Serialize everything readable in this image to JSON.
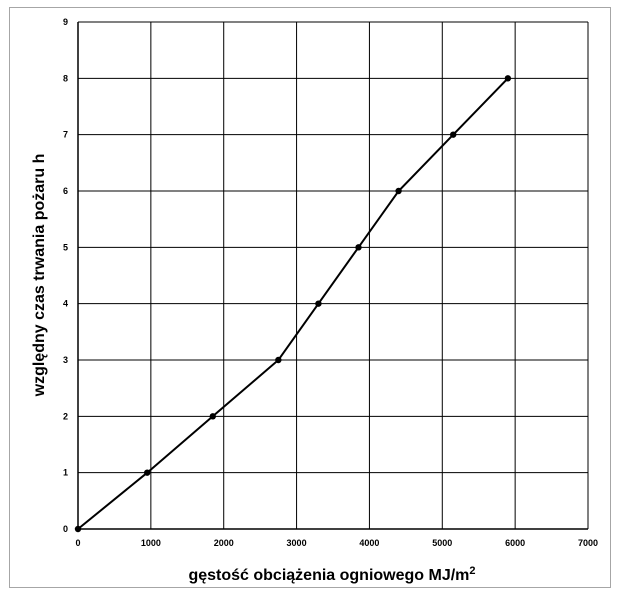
{
  "chart_data": {
    "type": "line",
    "title": "",
    "xlabel": "gęstość obciążenia ogniowego MJ/m",
    "xlabel_superscript": "2",
    "ylabel": "względny czas trwania pożaru h",
    "xlim": [
      0,
      7000
    ],
    "ylim": [
      0,
      9
    ],
    "x_ticks": [
      0,
      1000,
      2000,
      3000,
      4000,
      5000,
      6000,
      7000
    ],
    "y_ticks": [
      0,
      1,
      2,
      3,
      4,
      5,
      6,
      7,
      8,
      9
    ],
    "grid": true,
    "legend": "none",
    "series": [
      {
        "x": [
          0,
          950,
          1850,
          2750,
          3300,
          3850,
          4400,
          5150,
          5900
        ],
        "y": [
          0,
          1,
          2,
          3,
          4,
          5,
          6,
          7,
          8
        ],
        "color": "#000000",
        "marker": "circle"
      }
    ]
  }
}
